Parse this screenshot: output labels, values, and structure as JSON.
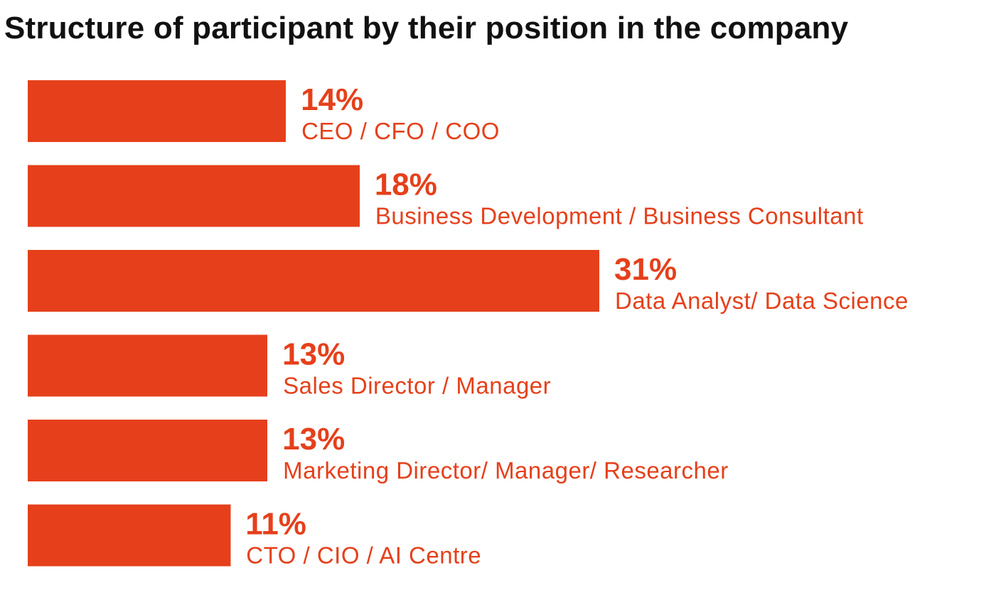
{
  "chart_data": {
    "type": "bar",
    "orientation": "horizontal",
    "title": "Structure of participant by their position in the company",
    "xlabel": "",
    "ylabel": "",
    "categories": [
      "CEO / CFO / COO",
      "Business Development / Business Consultant",
      "Data Analyst/ Data Science",
      "Sales Director / Manager",
      "Marketing Director/ Manager/ Researcher",
      "CTO / CIO / AI Centre"
    ],
    "values": [
      14,
      18,
      31,
      13,
      13,
      11
    ],
    "value_labels": [
      "14%",
      "18%",
      "31%",
      "13%",
      "13%",
      "11%"
    ],
    "unit": "%",
    "xlim": [
      0,
      31
    ],
    "grid": false,
    "legend": "none",
    "bar_color": "#E5401B",
    "label_color": "#E5401B",
    "title_color": "#111111"
  }
}
